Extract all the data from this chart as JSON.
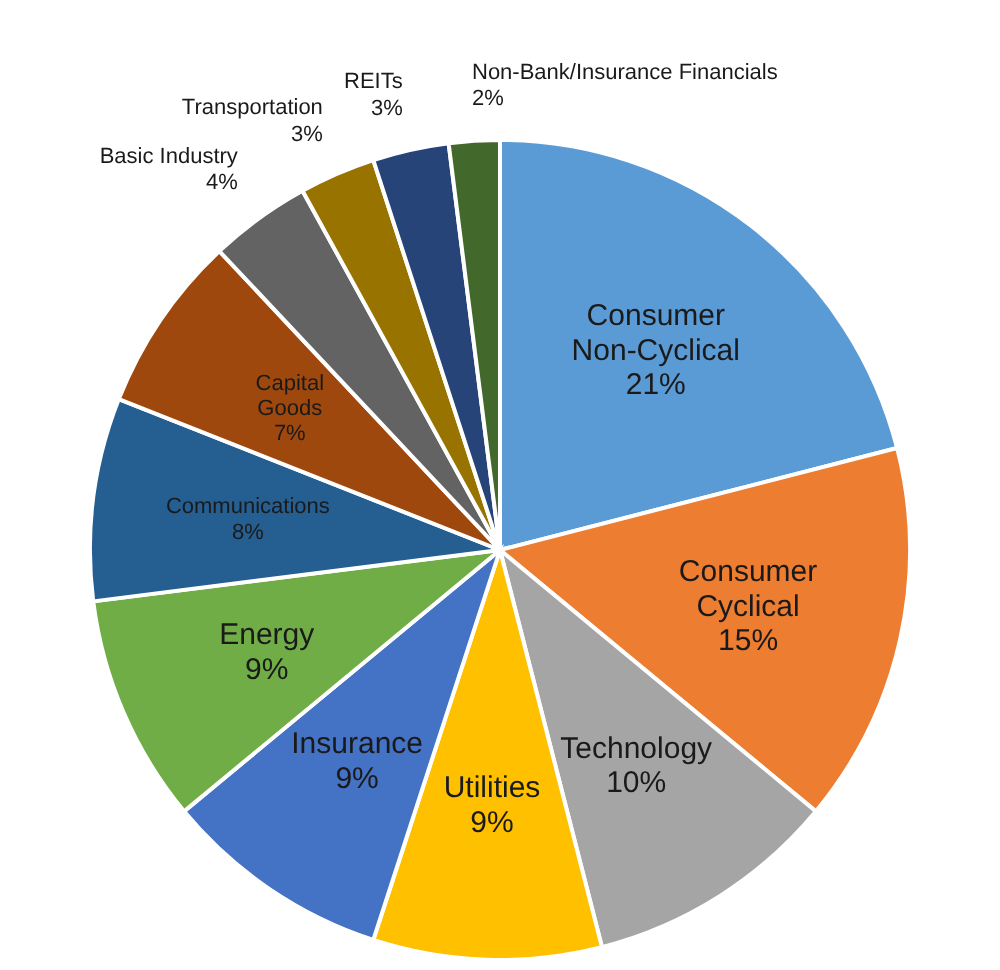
{
  "chart_data": {
    "type": "pie",
    "categories": [
      "Consumer Non-Cyclical",
      "Consumer Cyclical",
      "Technology",
      "Utilities",
      "Insurance",
      "Energy",
      "Communications",
      "Capital Goods",
      "Basic Industry",
      "Transportation",
      "REITs",
      "Non-Bank/Insurance Financials"
    ],
    "values": [
      21,
      15,
      10,
      9,
      9,
      9,
      8,
      7,
      4,
      3,
      3,
      2
    ],
    "value_labels": [
      "21%",
      "15%",
      "10%",
      "9%",
      "9%",
      "9%",
      "8%",
      "7%",
      "4%",
      "3%",
      "3%",
      "2%"
    ],
    "colors": [
      "#5b9bd5",
      "#ed7d31",
      "#a5a5a5",
      "#ffc000",
      "#4472c4",
      "#70ad47",
      "#255e91",
      "#9e480e",
      "#636363",
      "#997300",
      "#264478",
      "#43682b"
    ],
    "legend": false
  }
}
